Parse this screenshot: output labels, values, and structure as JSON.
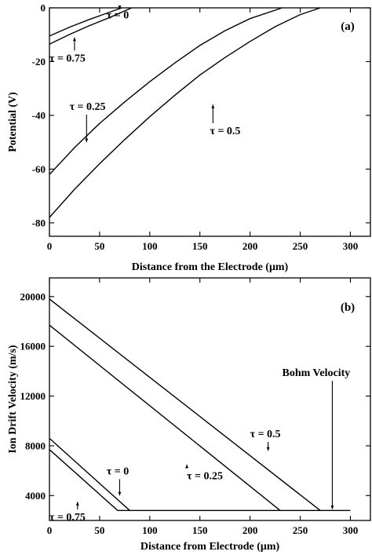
{
  "chart_data": [
    {
      "type": "line",
      "panel_label": "(a)",
      "xlabel": "Distance from the Electrode (μm)",
      "ylabel": "Potential (V)",
      "xlim": [
        0,
        320
      ],
      "ylim": [
        -85,
        0
      ],
      "xticks": [
        0,
        50,
        100,
        150,
        200,
        250,
        300
      ],
      "yticks": [
        0,
        -20,
        -40,
        -60,
        -80
      ],
      "series": [
        {
          "name": "τ = 0",
          "x": [
            0,
            20,
            40,
            60,
            72
          ],
          "y": [
            -10.5,
            -7.2,
            -4.3,
            -1.6,
            0
          ]
        },
        {
          "name": "τ = 0.75",
          "x": [
            0,
            20,
            40,
            60,
            82
          ],
          "y": [
            -13.5,
            -9.9,
            -6.6,
            -3.6,
            0
          ]
        },
        {
          "name": "τ = 0.25",
          "x": [
            0,
            25,
            50,
            75,
            100,
            125,
            150,
            175,
            200,
            232
          ],
          "y": [
            -62,
            -52,
            -43,
            -35,
            -27.5,
            -20.5,
            -14,
            -8.5,
            -4,
            0
          ]
        },
        {
          "name": "τ = 0.5",
          "x": [
            0,
            25,
            50,
            75,
            100,
            125,
            150,
            175,
            200,
            225,
            250,
            270
          ],
          "y": [
            -78,
            -67.5,
            -58,
            -49,
            -40.5,
            -32.5,
            -25,
            -18.5,
            -12.5,
            -7,
            -2.5,
            0
          ]
        }
      ],
      "annotations": [
        {
          "text": "τ = 0",
          "x": 57,
          "y": -4,
          "arrow_tip": [
            70,
            -0.5
          ]
        },
        {
          "text": "τ = 0.75",
          "x": 0,
          "y": -20,
          "arrow_tip": [
            25,
            -11
          ]
        },
        {
          "text": "τ = 0.25",
          "x": 20,
          "y": -38,
          "arrow_tip": [
            37,
            -50
          ]
        },
        {
          "text": "τ = 0.5",
          "x": 160,
          "y": -47,
          "arrow_tip": [
            163,
            -36
          ]
        }
      ]
    },
    {
      "type": "line",
      "panel_label": "(b)",
      "xlabel": "Distance from Electrode (μm)",
      "ylabel": "Ion Drift Velocity (m/s)",
      "xlim": [
        0,
        320
      ],
      "ylim": [
        2000,
        21500
      ],
      "xticks": [
        0,
        50,
        100,
        150,
        200,
        250,
        300
      ],
      "yticks": [
        4000,
        8000,
        12000,
        16000,
        20000
      ],
      "series": [
        {
          "name": "τ = 0.5",
          "x": [
            0,
            270
          ],
          "y": [
            19800,
            2800
          ]
        },
        {
          "name": "τ = 0.25",
          "x": [
            0,
            230
          ],
          "y": [
            17700,
            2800
          ]
        },
        {
          "name": "τ = 0",
          "x": [
            0,
            80
          ],
          "y": [
            8600,
            2800
          ]
        },
        {
          "name": "τ = 0.75",
          "x": [
            0,
            68
          ],
          "y": [
            7700,
            2800
          ]
        },
        {
          "name": "Bohm Velocity",
          "x": [
            68,
            300
          ],
          "y": [
            2800,
            2800
          ]
        }
      ],
      "annotations": [
        {
          "text": "τ = 0.5",
          "x": 200,
          "y": 8700,
          "arrow_tip": [
            218,
            7600
          ]
        },
        {
          "text": "τ = 0.25",
          "x": 137,
          "y": 5300,
          "arrow_tip": [
            137,
            6500
          ]
        },
        {
          "text": "τ = 0",
          "x": 57,
          "y": 5700,
          "arrow_tip": [
            70,
            4000
          ]
        },
        {
          "text": "τ = 0.75",
          "x": 0,
          "y": 2000,
          "arrow_tip": [
            28,
            3500
          ]
        },
        {
          "text": "Bohm Velocity",
          "x": 232,
          "y": 13600,
          "arrow_tip": [
            282,
            2900
          ]
        }
      ]
    }
  ]
}
